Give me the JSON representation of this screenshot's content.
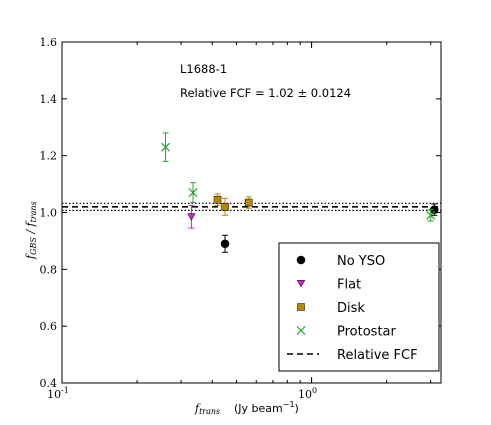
{
  "chart_data": {
    "type": "scatter",
    "xscale": "log",
    "xlim": [
      0.1,
      3.3
    ],
    "ylim": [
      0.4,
      1.6
    ],
    "xlabel": "f_trans (Jy beam^-1)",
    "ylabel": "f_GBS / f_trans",
    "x_tick_labels": [
      "10^-1",
      "10^0"
    ],
    "y_tick_labels": [
      "0.4",
      "0.6",
      "0.8",
      "1.0",
      "1.2",
      "1.4",
      "1.6"
    ],
    "annotations": [
      "L1688-1",
      "Relative FCF = 1.02 ± 0.0124"
    ],
    "reference_lines": {
      "relative_fcf": 1.02,
      "lower": 1.0076,
      "upper": 1.0324
    },
    "legend_position": "lower-right",
    "series": [
      {
        "name": "No YSO",
        "marker": "circle",
        "color": "#000000",
        "points": [
          {
            "x": 0.45,
            "y": 0.89,
            "yerr": 0.03
          },
          {
            "x": 3.1,
            "y": 1.01,
            "yerr": 0.02
          }
        ]
      },
      {
        "name": "Flat",
        "marker": "triangle-down",
        "color": "#cc22cc",
        "points": [
          {
            "x": 0.33,
            "y": 0.985,
            "yerr": 0.04
          }
        ]
      },
      {
        "name": "Disk",
        "marker": "square",
        "color": "#b8860b",
        "points": [
          {
            "x": 0.42,
            "y": 1.045,
            "yerr": 0.02
          },
          {
            "x": 0.45,
            "y": 1.02,
            "yerr": 0.03
          },
          {
            "x": 0.56,
            "y": 1.035,
            "yerr": 0.02
          }
        ]
      },
      {
        "name": "Protostar",
        "marker": "x",
        "color": "#2ca02c",
        "points": [
          {
            "x": 0.26,
            "y": 1.23,
            "yerr": 0.05
          },
          {
            "x": 0.335,
            "y": 1.07,
            "yerr": 0.035
          },
          {
            "x": 3.0,
            "y": 0.99,
            "yerr": 0.02
          }
        ]
      }
    ],
    "legend_entries": [
      "No YSO",
      "Flat",
      "Disk",
      "Protostar",
      "Relative FCF"
    ]
  }
}
